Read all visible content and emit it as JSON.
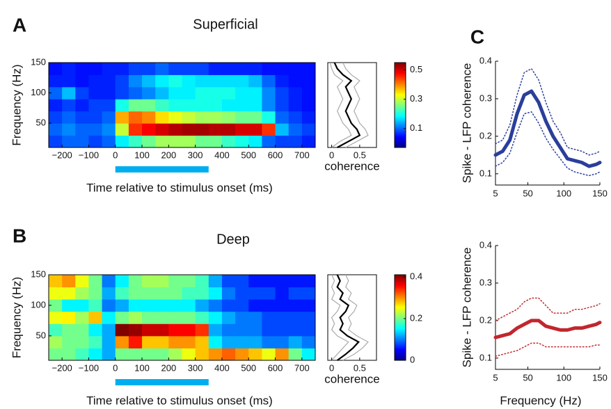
{
  "chart_data": [
    {
      "type": "heatmap",
      "panel": "A",
      "title": "Superficial",
      "xlabel": "Time relative to stimulus onset (ms)",
      "ylabel": "Frequency (Hz)",
      "x_bins": [
        -250,
        -200,
        -150,
        -100,
        -50,
        0,
        50,
        100,
        150,
        200,
        250,
        300,
        350,
        400,
        450,
        500,
        550,
        600,
        650,
        700,
        750
      ],
      "y_bins": [
        10,
        30,
        50,
        70,
        90,
        110,
        130,
        150
      ],
      "z": [
        [
          0.08,
          0.1,
          0.1,
          0.08,
          0.1,
          0.18,
          0.22,
          0.25,
          0.28,
          0.28,
          0.28,
          0.25,
          0.25,
          0.22,
          0.2,
          0.18,
          0.1,
          0.08,
          0.08,
          0.06
        ],
        [
          0.1,
          0.12,
          0.1,
          0.1,
          0.12,
          0.3,
          0.45,
          0.48,
          0.5,
          0.52,
          0.53,
          0.53,
          0.52,
          0.52,
          0.5,
          0.5,
          0.45,
          0.15,
          0.1,
          0.08
        ],
        [
          0.08,
          0.1,
          0.08,
          0.08,
          0.1,
          0.38,
          0.42,
          0.4,
          0.35,
          0.32,
          0.3,
          0.28,
          0.28,
          0.27,
          0.25,
          0.25,
          0.2,
          0.1,
          0.08,
          0.06
        ],
        [
          0.06,
          0.08,
          0.06,
          0.08,
          0.08,
          0.2,
          0.25,
          0.25,
          0.22,
          0.2,
          0.2,
          0.2,
          0.2,
          0.18,
          0.18,
          0.18,
          0.12,
          0.08,
          0.06,
          0.05
        ],
        [
          0.1,
          0.15,
          0.08,
          0.06,
          0.06,
          0.08,
          0.1,
          0.12,
          0.15,
          0.18,
          0.18,
          0.2,
          0.2,
          0.2,
          0.18,
          0.18,
          0.12,
          0.08,
          0.06,
          0.05
        ],
        [
          0.06,
          0.06,
          0.05,
          0.06,
          0.06,
          0.08,
          0.12,
          0.15,
          0.18,
          0.2,
          0.18,
          0.17,
          0.17,
          0.17,
          0.17,
          0.15,
          0.1,
          0.06,
          0.05,
          0.05
        ],
        [
          0.05,
          0.06,
          0.05,
          0.05,
          0.06,
          0.06,
          0.08,
          0.08,
          0.1,
          0.08,
          0.08,
          0.08,
          0.06,
          0.06,
          0.06,
          0.06,
          0.05,
          0.05,
          0.05,
          0.05
        ]
      ],
      "xlim": [
        -250,
        750
      ],
      "ylim": [
        10,
        150
      ],
      "xticks": [
        {
          "value": -200,
          "label": "−200"
        },
        {
          "value": -100,
          "label": "−100"
        },
        0,
        100,
        200,
        300,
        400,
        500,
        600,
        700
      ],
      "yticks": [
        50,
        100,
        150
      ],
      "clim": [
        -0.03,
        0.55
      ],
      "cticks": [
        0.1,
        0.3,
        0.5
      ],
      "colormap": "jet",
      "stimulus": [
        0,
        350
      ],
      "stimulus_color": "#00aeef"
    },
    {
      "type": "profile",
      "xlabel": "coherence",
      "xlim": [
        -0.07,
        0.8
      ],
      "xticks": [
        0,
        0.5
      ],
      "ylim": [
        10,
        150
      ],
      "frequencies": [
        10,
        20,
        30,
        40,
        50,
        60,
        70,
        80,
        90,
        100,
        110,
        120,
        130,
        140,
        150
      ],
      "series": [
        {
          "color": "#aaaaaa",
          "values": [
            0.25,
            0.45,
            0.65,
            0.6,
            0.5,
            0.45,
            0.4,
            0.45,
            0.5,
            0.45,
            0.4,
            0.5,
            0.35,
            0.25,
            0.2
          ]
        },
        {
          "color": "#aaaaaa",
          "values": [
            0.0,
            0.15,
            0.35,
            0.3,
            0.2,
            0.15,
            0.1,
            0.15,
            0.2,
            0.15,
            0.1,
            0.2,
            0.05,
            0.0,
            -0.03
          ]
        },
        {
          "color": "#000000",
          "values": [
            0.1,
            0.3,
            0.5,
            0.45,
            0.35,
            0.3,
            0.25,
            0.3,
            0.35,
            0.3,
            0.25,
            0.35,
            0.2,
            0.1,
            0.05
          ]
        }
      ]
    },
    {
      "type": "heatmap",
      "panel": "B",
      "title": "Deep",
      "xlabel": "Time relative to stimulus onset (ms)",
      "ylabel": "Frequency (Hz)",
      "x_bins": [
        -250,
        -200,
        -150,
        -100,
        -50,
        0,
        50,
        100,
        150,
        200,
        250,
        300,
        350,
        400,
        450,
        500,
        550,
        600,
        650,
        700,
        750
      ],
      "y_bins": [
        10,
        30,
        50,
        70,
        90,
        110,
        130,
        150
      ],
      "z": [
        [
          0.2,
          0.2,
          0.18,
          0.15,
          0.12,
          0.2,
          0.2,
          0.2,
          0.2,
          0.22,
          0.25,
          0.28,
          0.3,
          0.32,
          0.3,
          0.28,
          0.25,
          0.3,
          0.2,
          0.15
        ],
        [
          0.22,
          0.2,
          0.2,
          0.18,
          0.12,
          0.3,
          0.35,
          0.28,
          0.28,
          0.3,
          0.3,
          0.28,
          0.15,
          0.12,
          0.12,
          0.12,
          0.1,
          0.1,
          0.12,
          0.1
        ],
        [
          0.18,
          0.2,
          0.2,
          0.15,
          0.12,
          0.42,
          0.4,
          0.38,
          0.38,
          0.36,
          0.36,
          0.34,
          0.12,
          0.1,
          0.1,
          0.1,
          0.08,
          0.08,
          0.08,
          0.08
        ],
        [
          0.25,
          0.26,
          0.22,
          0.28,
          0.15,
          0.2,
          0.22,
          0.2,
          0.2,
          0.2,
          0.2,
          0.18,
          0.15,
          0.12,
          0.1,
          0.1,
          0.08,
          0.08,
          0.08,
          0.08
        ],
        [
          0.2,
          0.15,
          0.15,
          0.18,
          0.1,
          0.12,
          0.15,
          0.15,
          0.15,
          0.15,
          0.15,
          0.12,
          0.1,
          0.08,
          0.08,
          0.06,
          0.06,
          0.06,
          0.06,
          0.06
        ],
        [
          0.25,
          0.25,
          0.22,
          0.2,
          0.12,
          0.18,
          0.2,
          0.2,
          0.2,
          0.2,
          0.18,
          0.18,
          0.15,
          0.1,
          0.08,
          0.08,
          0.08,
          0.06,
          0.08,
          0.08
        ],
        [
          0.28,
          0.3,
          0.25,
          0.2,
          0.1,
          0.15,
          0.2,
          0.22,
          0.22,
          0.2,
          0.2,
          0.18,
          0.12,
          0.08,
          0.08,
          0.06,
          0.06,
          0.06,
          0.06,
          0.06
        ]
      ],
      "xlim": [
        -250,
        750
      ],
      "ylim": [
        10,
        150
      ],
      "xticks": [
        {
          "value": -200,
          "label": "−200"
        },
        {
          "value": -100,
          "label": "−100"
        },
        0,
        100,
        200,
        300,
        400,
        500,
        600,
        700
      ],
      "yticks": [
        50,
        100,
        150
      ],
      "clim": [
        0,
        0.41
      ],
      "cticks": [
        0,
        0.2,
        0.4
      ],
      "colormap": "jet",
      "stimulus": [
        0,
        350
      ],
      "stimulus_color": "#00aeef"
    },
    {
      "type": "profile",
      "xlabel": "coherence",
      "xlim": [
        -0.07,
        0.8
      ],
      "xticks": [
        0,
        0.5
      ],
      "ylim": [
        10,
        150
      ],
      "frequencies": [
        10,
        20,
        30,
        40,
        50,
        60,
        70,
        80,
        90,
        100,
        110,
        120,
        130,
        140,
        150
      ],
      "series": [
        {
          "color": "#aaaaaa",
          "values": [
            0.2,
            0.4,
            0.55,
            0.65,
            0.45,
            0.3,
            0.35,
            0.3,
            0.4,
            0.45,
            0.3,
            0.35,
            0.25,
            0.3,
            0.25
          ]
        },
        {
          "color": "#aaaaaa",
          "values": [
            0.0,
            0.1,
            0.2,
            0.3,
            0.1,
            0.0,
            0.05,
            0.0,
            0.1,
            0.15,
            0.0,
            0.05,
            0.0,
            0.05,
            0.0
          ]
        },
        {
          "color": "#000000",
          "values": [
            0.1,
            0.25,
            0.38,
            0.48,
            0.28,
            0.15,
            0.2,
            0.15,
            0.25,
            0.3,
            0.15,
            0.2,
            0.1,
            0.15,
            0.1
          ]
        }
      ]
    },
    {
      "type": "line",
      "panel": "C",
      "ylabel": "Spike - LFP coherence",
      "xlim": [
        5,
        150
      ],
      "ylim": [
        0.07,
        0.4
      ],
      "xticks": [
        5,
        50,
        100,
        150
      ],
      "yticks": [
        0.1,
        0.2,
        0.3,
        0.4
      ],
      "x": [
        5,
        15,
        25,
        35,
        45,
        55,
        65,
        75,
        85,
        95,
        105,
        115,
        125,
        135,
        145,
        150
      ],
      "series": [
        {
          "color": "#2b3e9b",
          "linestyle": "dotted",
          "values": [
            0.18,
            0.19,
            0.23,
            0.31,
            0.37,
            0.38,
            0.35,
            0.29,
            0.24,
            0.21,
            0.17,
            0.165,
            0.16,
            0.15,
            0.155,
            0.16
          ]
        },
        {
          "color": "#2b3e9b",
          "linestyle": "dotted",
          "values": [
            0.12,
            0.13,
            0.155,
            0.21,
            0.26,
            0.265,
            0.235,
            0.195,
            0.165,
            0.14,
            0.115,
            0.105,
            0.1,
            0.095,
            0.1,
            0.105
          ]
        },
        {
          "color": "#2b3e9b",
          "linestyle": "solid",
          "values": [
            0.15,
            0.16,
            0.19,
            0.26,
            0.31,
            0.32,
            0.29,
            0.24,
            0.2,
            0.17,
            0.14,
            0.135,
            0.13,
            0.12,
            0.125,
            0.13
          ]
        }
      ]
    },
    {
      "type": "line",
      "ylabel": "Spike - LFP coherence",
      "xlabel": "Frequency (Hz)",
      "xlim": [
        5,
        150
      ],
      "ylim": [
        0.07,
        0.4
      ],
      "xticks": [
        5,
        50,
        100,
        150
      ],
      "yticks": [
        0.1,
        0.2,
        0.3,
        0.4
      ],
      "x": [
        5,
        15,
        25,
        35,
        45,
        55,
        65,
        75,
        85,
        95,
        105,
        115,
        125,
        135,
        145,
        150
      ],
      "series": [
        {
          "color": "#c1272d",
          "linestyle": "dotted",
          "values": [
            0.2,
            0.21,
            0.22,
            0.23,
            0.25,
            0.26,
            0.26,
            0.24,
            0.22,
            0.22,
            0.22,
            0.23,
            0.23,
            0.235,
            0.24,
            0.245
          ]
        },
        {
          "color": "#c1272d",
          "linestyle": "dotted",
          "values": [
            0.105,
            0.11,
            0.115,
            0.12,
            0.13,
            0.14,
            0.14,
            0.13,
            0.13,
            0.13,
            0.13,
            0.13,
            0.13,
            0.13,
            0.135,
            0.135
          ]
        },
        {
          "color": "#c1272d",
          "linestyle": "solid",
          "values": [
            0.155,
            0.16,
            0.165,
            0.18,
            0.19,
            0.2,
            0.2,
            0.185,
            0.18,
            0.175,
            0.175,
            0.18,
            0.18,
            0.185,
            0.19,
            0.195
          ]
        }
      ]
    }
  ]
}
